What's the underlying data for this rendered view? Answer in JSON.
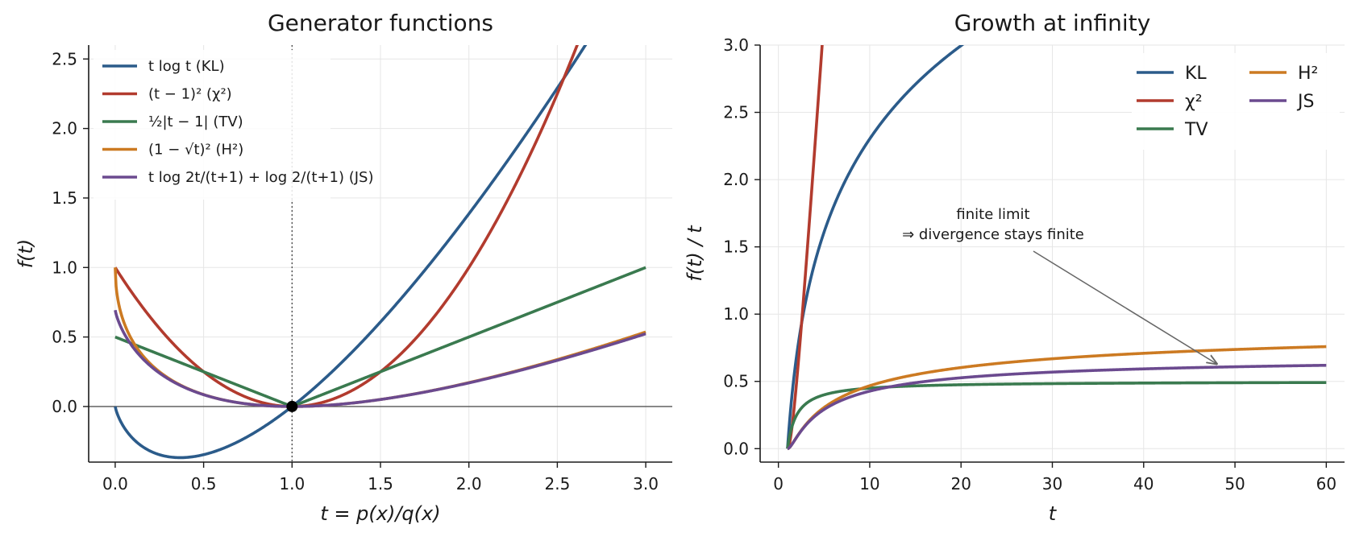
{
  "colors": {
    "KL": "#2b5b8a",
    "chi2": "#b23b2e",
    "TV": "#3a7a4f",
    "H2": "#cc7a22",
    "JS": "#6b4a8f"
  },
  "chart_data": [
    {
      "type": "line",
      "title": "Generator functions",
      "xlabel": "t = p(x)/q(x)",
      "ylabel": "f(t)",
      "xlim": [
        -0.15,
        3.15
      ],
      "ylim": [
        -0.4,
        2.6
      ],
      "xticks": [
        "0.0",
        "0.5",
        "1.0",
        "1.5",
        "2.0",
        "2.5",
        "3.0"
      ],
      "yticks": [
        "0.0",
        "0.5",
        "1.0",
        "1.5",
        "2.0",
        "2.5"
      ],
      "grid": true,
      "legend_position": "top-left",
      "reference_lines": {
        "vertical_x": 1.0,
        "horizontal_y": 0.0
      },
      "marker_point": {
        "x": 1.0,
        "y": 0.0
      },
      "x_range": [
        0.0,
        3.0
      ],
      "series": [
        {
          "key": "KL",
          "name": "t log t  (KL)"
        },
        {
          "key": "chi2",
          "name": "(t − 1)²  (χ²)"
        },
        {
          "key": "TV",
          "name": "½|t − 1|  (TV)"
        },
        {
          "key": "H2",
          "name": "(1 − √t)²  (H²)"
        },
        {
          "key": "JS",
          "name": "t log 2t/(t+1) + log 2/(t+1)  (JS)"
        }
      ]
    },
    {
      "type": "line",
      "title": "Growth at infinity",
      "xlabel": "t",
      "ylabel": "f(t) / t",
      "xlim": [
        -2,
        62
      ],
      "ylim": [
        -0.1,
        3.0
      ],
      "xticks": [
        "0",
        "10",
        "20",
        "30",
        "40",
        "50",
        "60"
      ],
      "yticks": [
        "0.0",
        "0.5",
        "1.0",
        "1.5",
        "2.0",
        "2.5",
        "3.0"
      ],
      "grid": true,
      "legend_position": "top-right",
      "x_range": [
        1.0,
        60.0
      ],
      "series": [
        {
          "key": "KL",
          "name": "KL"
        },
        {
          "key": "chi2",
          "name": "χ²"
        },
        {
          "key": "TV",
          "name": "TV"
        },
        {
          "key": "H2",
          "name": "H²"
        },
        {
          "key": "JS",
          "name": "JS"
        }
      ],
      "annotation": {
        "line1": "finite limit",
        "line2": "⇒  divergence stays finite",
        "arrow_to": {
          "x": 48,
          "y": 0.63
        }
      }
    }
  ]
}
